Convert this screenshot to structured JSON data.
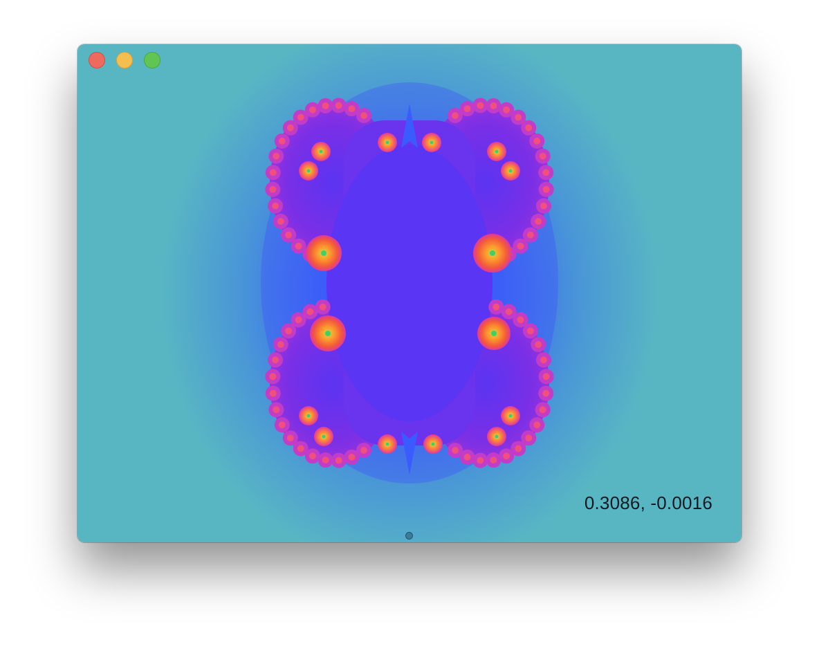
{
  "window": {
    "controls": [
      "close",
      "minimize",
      "zoom"
    ]
  },
  "fractal": {
    "type": "julia-set",
    "palette": {
      "background": "#58b6c3",
      "halo": "#3a5cff",
      "interior": "#7a2fe6",
      "edge": "#e0389c",
      "spiral": "#ff6a3a",
      "core": "#c8e040"
    }
  },
  "status": {
    "coordinate": "0.3086, -0.0016"
  }
}
